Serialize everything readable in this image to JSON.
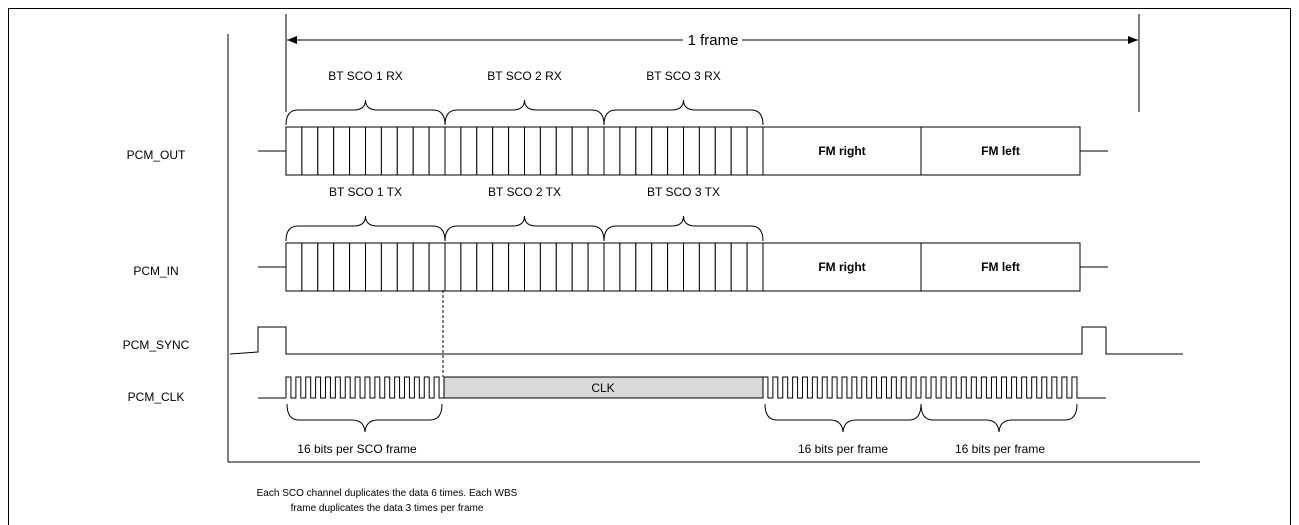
{
  "frame_label": "1 frame",
  "rx_groups": [
    "BT SCO 1 RX",
    "BT SCO 2 RX",
    "BT SCO 3 RX"
  ],
  "tx_groups": [
    "BT SCO 1 TX",
    "BT SCO 2 TX",
    "BT SCO 3 TX"
  ],
  "fm_slots": [
    "FM right",
    "FM left"
  ],
  "signals": {
    "pcm_out": "PCM_OUT",
    "pcm_in": "PCM_IN",
    "pcm_sync": "PCM_SYNC",
    "pcm_clk": "PCM_CLK"
  },
  "clk_block": "CLK",
  "bits_sco": "16 bits per SCO frame",
  "bits_frame": [
    "16 bits per frame",
    "16 bits per frame"
  ],
  "caption": [
    "Each SCO channel duplicates the data 6 times.  Each WBS",
    "frame duplicates the data 3 times per frame"
  ]
}
